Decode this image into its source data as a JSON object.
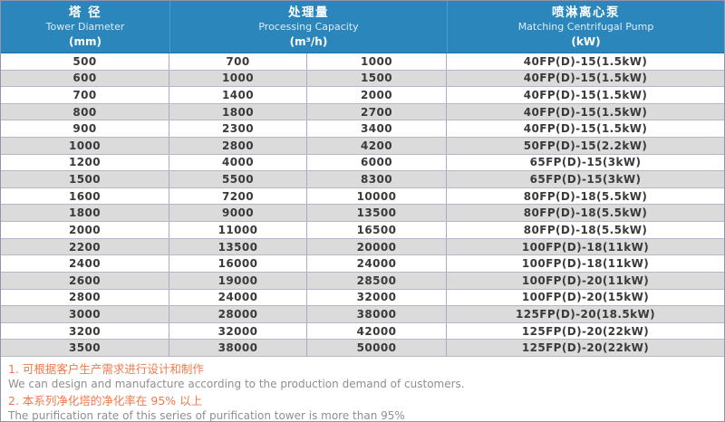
{
  "header": {
    "tower": {
      "cn": "塔 径",
      "en": "Tower Diameter",
      "unit": "(mm)"
    },
    "capacity": {
      "cn": "处理量",
      "en": "Processing Capacity",
      "unit": "(m³/h)"
    },
    "pump": {
      "cn": "喷淋离心泵",
      "en": "Matching Centrifugal Pump",
      "unit": "(kW)"
    }
  },
  "chart_data": {
    "type": "table",
    "title": "Purification tower specifications",
    "columns": [
      "Tower Diameter (mm)",
      "Processing Capacity min (m³/h)",
      "Processing Capacity max (m³/h)",
      "Matching Centrifugal Pump (kW)"
    ],
    "rows": [
      [
        "500",
        "700",
        "1000",
        "40FP(D)-15(1.5kW)"
      ],
      [
        "600",
        "1000",
        "1500",
        "40FP(D)-15(1.5kW)"
      ],
      [
        "700",
        "1400",
        "2000",
        "40FP(D)-15(1.5kW)"
      ],
      [
        "800",
        "1800",
        "2700",
        "40FP(D)-15(1.5kW)"
      ],
      [
        "900",
        "2300",
        "3400",
        "40FP(D)-15(1.5kW)"
      ],
      [
        "1000",
        "2800",
        "4200",
        "50FP(D)-15(2.2kW)"
      ],
      [
        "1200",
        "4000",
        "6000",
        "65FP(D)-15(3kW)"
      ],
      [
        "1500",
        "5500",
        "8300",
        "65FP(D)-15(3kW)"
      ],
      [
        "1600",
        "7200",
        "10000",
        "80FP(D)-18(5.5kW)"
      ],
      [
        "1800",
        "9000",
        "13500",
        "80FP(D)-18(5.5kW)"
      ],
      [
        "2000",
        "11000",
        "16500",
        "80FP(D)-18(5.5kW)"
      ],
      [
        "2200",
        "13500",
        "20000",
        "100FP(D)-18(11kW)"
      ],
      [
        "2400",
        "16000",
        "24000",
        "100FP(D)-18(11kW)"
      ],
      [
        "2600",
        "19000",
        "28500",
        "100FP(D)-20(11kW)"
      ],
      [
        "2800",
        "24000",
        "32000",
        "100FP(D)-20(15kW)"
      ],
      [
        "3000",
        "28000",
        "38000",
        "125FP(D)-20(18.5kW)"
      ],
      [
        "3200",
        "32000",
        "42000",
        "125FP(D)-20(22kW)"
      ],
      [
        "3500",
        "38000",
        "50000",
        "125FP(D)-20(22kW)"
      ]
    ]
  },
  "notes": [
    {
      "cn": "1. 可根据客户生产需求进行设计和制作",
      "en": "We can design and manufacture according to the production demand of customers."
    },
    {
      "cn": "2. 本系列净化塔的净化率在 95% 以上",
      "en": "The purification rate of this series of purification tower is more than 95%"
    }
  ],
  "colors": {
    "header_bg": "#2B86BC",
    "header_divider": "#4F9CCB",
    "row_alt_bg": "#DBDBDB",
    "row_border": "#B3B7C9",
    "cell_text": "#3A3A3A",
    "note_accent": "#F0794D",
    "note_text": "#8F8F8F",
    "outer_border": "#9095AB"
  }
}
